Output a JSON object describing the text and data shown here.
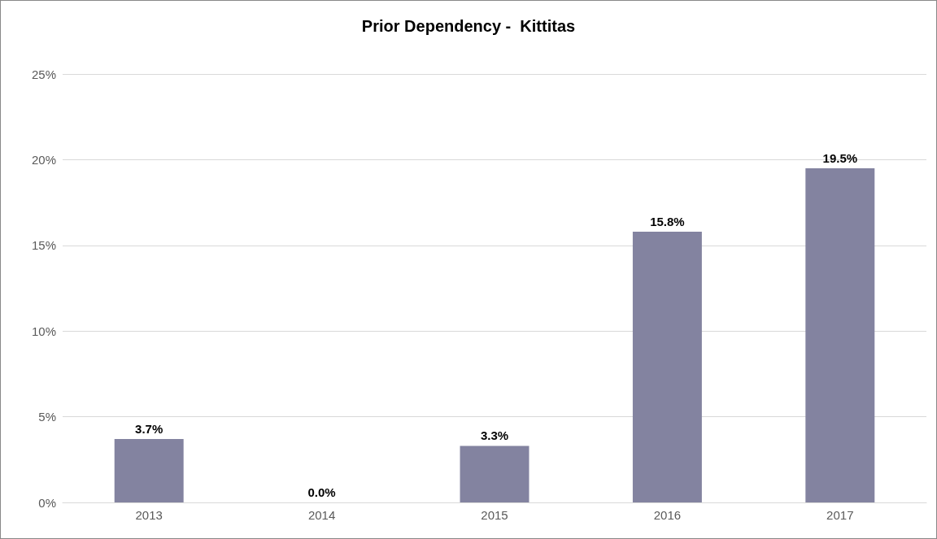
{
  "chart_data": {
    "type": "bar",
    "title": "Prior Dependency -  Kittitas",
    "categories": [
      "2013",
      "2014",
      "2015",
      "2016",
      "2017"
    ],
    "values": [
      3.7,
      0.0,
      3.3,
      15.8,
      19.5
    ],
    "value_labels": [
      "3.7%",
      "0.0%",
      "3.3%",
      "15.8%",
      "19.5%"
    ],
    "color": "#8383a0",
    "ylim": [
      0,
      25
    ],
    "yticks": [
      {
        "value": 0,
        "label": "0%"
      },
      {
        "value": 5,
        "label": "5%"
      },
      {
        "value": 10,
        "label": "10%"
      },
      {
        "value": 15,
        "label": "15%"
      },
      {
        "value": 20,
        "label": "20%"
      },
      {
        "value": 25,
        "label": "25%"
      }
    ],
    "grid": "y"
  }
}
